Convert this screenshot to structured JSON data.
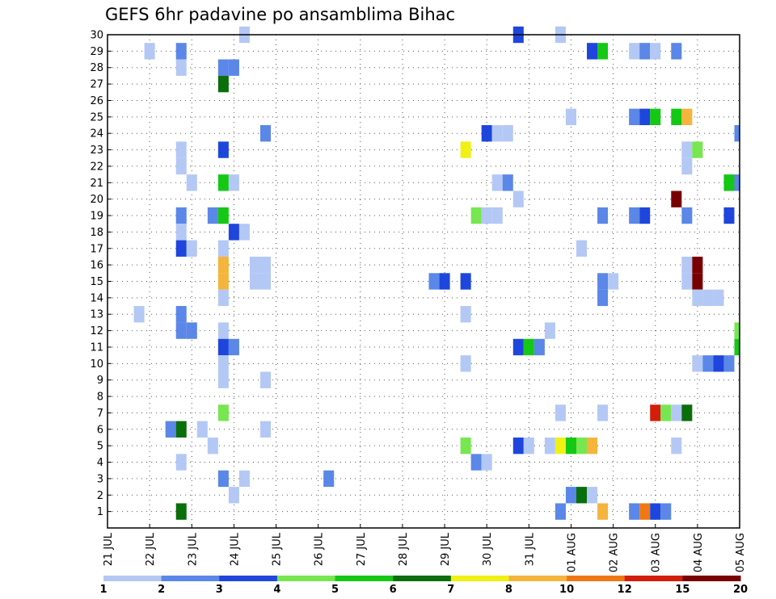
{
  "chart_data": {
    "type": "heatmap",
    "title": "GEFS 6hr padavine po ansamblima Bihac",
    "xlabel": "",
    "ylabel": "",
    "x_ticks": [
      "21 JUL",
      "22 JUL",
      "23 JUL",
      "24 JUL",
      "25 JUL",
      "26 JUL",
      "27 JUL",
      "28 JUL",
      "29 JUL",
      "30 JUL",
      "31 JUL",
      "01 AUG",
      "02 AUG",
      "03 AUG",
      "04 AUG",
      "05 AUG"
    ],
    "y_ticks": [
      "1",
      "2",
      "3",
      "4",
      "5",
      "6",
      "7",
      "8",
      "9",
      "10",
      "11",
      "12",
      "13",
      "14",
      "15",
      "16",
      "17",
      "18",
      "19",
      "20",
      "21",
      "22",
      "23",
      "24",
      "25",
      "26",
      "27",
      "28",
      "29",
      "30"
    ],
    "xlim_days": [
      0,
      15
    ],
    "ylim_members": [
      0,
      30
    ],
    "grid": true,
    "legend_position": "bottom",
    "legend": {
      "labels": [
        "1",
        "2",
        "3",
        "4",
        "5",
        "6",
        "7",
        "8",
        "10",
        "12",
        "15",
        "20"
      ],
      "colors": [
        "#b4c8f5",
        "#5a87e8",
        "#1e46dc",
        "#78e650",
        "#14c814",
        "#0a6e0a",
        "#f0f014",
        "#f5b43c",
        "#f07814",
        "#d21e0a",
        "#780000"
      ]
    },
    "cells_note": "each cell = [member, day offset from 21 JUL, precipitation class 1-11]",
    "cells": [
      [
        30,
        3.25,
        1
      ],
      [
        30,
        9.75,
        3
      ],
      [
        30,
        10.75,
        1
      ],
      [
        29,
        1,
        1
      ],
      [
        29,
        1.75,
        2
      ],
      [
        29,
        11.5,
        3
      ],
      [
        29,
        11.75,
        5
      ],
      [
        29,
        12.5,
        1
      ],
      [
        29,
        12.75,
        2
      ],
      [
        29,
        13,
        1
      ],
      [
        29,
        13.5,
        2
      ],
      [
        28,
        1.75,
        1
      ],
      [
        28,
        2.75,
        2
      ],
      [
        28,
        3,
        2
      ],
      [
        27,
        2.75,
        6
      ],
      [
        25,
        11,
        1
      ],
      [
        25,
        12.5,
        2
      ],
      [
        25,
        12.75,
        3
      ],
      [
        25,
        13,
        5
      ],
      [
        25,
        13.5,
        5
      ],
      [
        25,
        13.75,
        8
      ],
      [
        24,
        3.75,
        2
      ],
      [
        24,
        9,
        3
      ],
      [
        24,
        9.25,
        1
      ],
      [
        24,
        9.5,
        1
      ],
      [
        24,
        15,
        2
      ],
      [
        23,
        1.75,
        1
      ],
      [
        23,
        2.75,
        3
      ],
      [
        23,
        8.5,
        7
      ],
      [
        23,
        13.75,
        1
      ],
      [
        23,
        14,
        4
      ],
      [
        22,
        1.75,
        1
      ],
      [
        22,
        13.75,
        1
      ],
      [
        21,
        2,
        1
      ],
      [
        21,
        2.75,
        5
      ],
      [
        21,
        3,
        1
      ],
      [
        21,
        9.25,
        1
      ],
      [
        21,
        9.5,
        2
      ],
      [
        21,
        14.75,
        5
      ],
      [
        21,
        15,
        2
      ],
      [
        20,
        9.75,
        1
      ],
      [
        20,
        13.5,
        11
      ],
      [
        19,
        1.75,
        2
      ],
      [
        19,
        2.5,
        2
      ],
      [
        19,
        2.75,
        5
      ],
      [
        19,
        8.75,
        4
      ],
      [
        19,
        9,
        1
      ],
      [
        19,
        9.25,
        1
      ],
      [
        19,
        11.75,
        2
      ],
      [
        19,
        12.5,
        2
      ],
      [
        19,
        12.75,
        3
      ],
      [
        19,
        13.75,
        2
      ],
      [
        19,
        14.75,
        3
      ],
      [
        18,
        1.75,
        1
      ],
      [
        18,
        3,
        3
      ],
      [
        18,
        3.25,
        1
      ],
      [
        17,
        1.75,
        3
      ],
      [
        17,
        2,
        1
      ],
      [
        17,
        2.75,
        1
      ],
      [
        17,
        11.25,
        1
      ],
      [
        16,
        2.75,
        8
      ],
      [
        16,
        3.5,
        1
      ],
      [
        16,
        3.75,
        1
      ],
      [
        16,
        13.75,
        1
      ],
      [
        16,
        14,
        11
      ],
      [
        15,
        2.75,
        8
      ],
      [
        15,
        3.5,
        1
      ],
      [
        15,
        3.75,
        1
      ],
      [
        15,
        7.75,
        2
      ],
      [
        15,
        8,
        3
      ],
      [
        15,
        8.5,
        3
      ],
      [
        15,
        11.75,
        2
      ],
      [
        15,
        12,
        1
      ],
      [
        15,
        13.75,
        1
      ],
      [
        15,
        14,
        11
      ],
      [
        14,
        2.75,
        1
      ],
      [
        14,
        11.75,
        2
      ],
      [
        14,
        14,
        1
      ],
      [
        14,
        14.25,
        1
      ],
      [
        14,
        14.5,
        1
      ],
      [
        13,
        0.75,
        1
      ],
      [
        13,
        1.75,
        2
      ],
      [
        13,
        8.5,
        1
      ],
      [
        12,
        1.75,
        2
      ],
      [
        12,
        2,
        2
      ],
      [
        12,
        2.75,
        1
      ],
      [
        12,
        10.5,
        1
      ],
      [
        12,
        15,
        4
      ],
      [
        11,
        2.75,
        3
      ],
      [
        11,
        3,
        2
      ],
      [
        11,
        9.75,
        3
      ],
      [
        11,
        10,
        5
      ],
      [
        11,
        10.25,
        2
      ],
      [
        11,
        15,
        5
      ],
      [
        10,
        2.75,
        1
      ],
      [
        10,
        8.5,
        1
      ],
      [
        10,
        14,
        1
      ],
      [
        10,
        14.25,
        2
      ],
      [
        10,
        14.5,
        3
      ],
      [
        10,
        14.75,
        2
      ],
      [
        9,
        2.75,
        1
      ],
      [
        9,
        3.75,
        1
      ],
      [
        7,
        2.75,
        4
      ],
      [
        7,
        10.75,
        1
      ],
      [
        7,
        11.75,
        1
      ],
      [
        7,
        13,
        10
      ],
      [
        7,
        13.25,
        4
      ],
      [
        7,
        13.5,
        1
      ],
      [
        7,
        13.75,
        6
      ],
      [
        6,
        1.5,
        2
      ],
      [
        6,
        1.75,
        6
      ],
      [
        6,
        2.25,
        1
      ],
      [
        6,
        3.75,
        1
      ],
      [
        5,
        2.5,
        1
      ],
      [
        5,
        8.5,
        4
      ],
      [
        5,
        9.75,
        3
      ],
      [
        5,
        10,
        1
      ],
      [
        5,
        10.5,
        1
      ],
      [
        5,
        10.75,
        7
      ],
      [
        5,
        11,
        5
      ],
      [
        5,
        11.25,
        4
      ],
      [
        5,
        11.5,
        8
      ],
      [
        5,
        13.5,
        1
      ],
      [
        4,
        1.75,
        1
      ],
      [
        4,
        8.75,
        2
      ],
      [
        4,
        9,
        1
      ],
      [
        3,
        2.75,
        2
      ],
      [
        3,
        3.25,
        1
      ],
      [
        3,
        5.25,
        2
      ],
      [
        2,
        3,
        1
      ],
      [
        2,
        11,
        2
      ],
      [
        2,
        11.25,
        6
      ],
      [
        2,
        11.5,
        1
      ],
      [
        1,
        1.75,
        6
      ],
      [
        1,
        10.75,
        2
      ],
      [
        1,
        11.75,
        8
      ],
      [
        1,
        12.5,
        2
      ],
      [
        1,
        12.75,
        9
      ],
      [
        1,
        13,
        3
      ],
      [
        1,
        13.25,
        2
      ]
    ]
  }
}
